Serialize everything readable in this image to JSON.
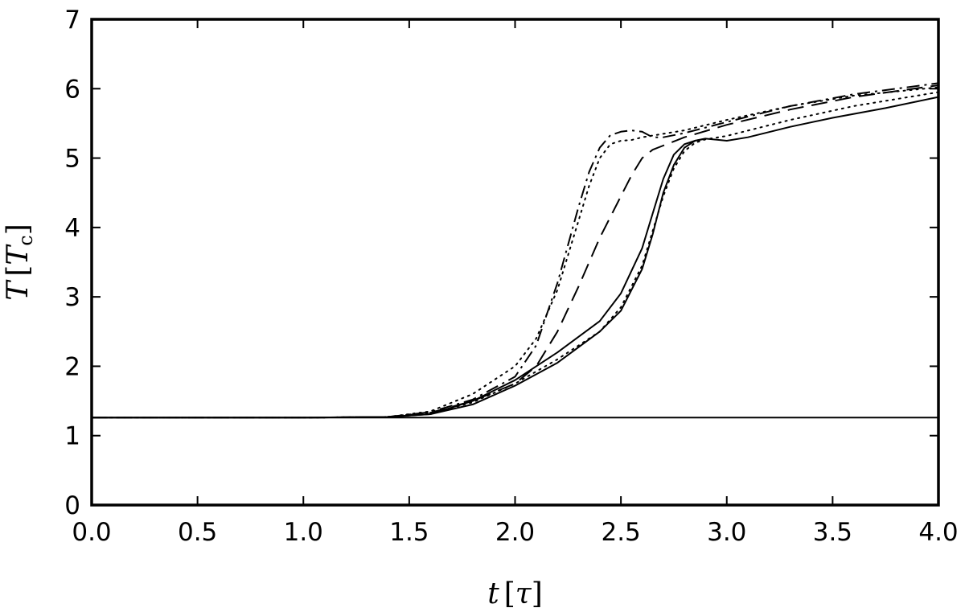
{
  "chart_data": {
    "type": "line",
    "title": "",
    "xlabel": "t [τ]",
    "ylabel": "T [T_c]",
    "xlim": [
      0.0,
      4.0
    ],
    "ylim": [
      0,
      7
    ],
    "x_ticks": [
      "0.0",
      "0.5",
      "1.0",
      "1.5",
      "2.0",
      "2.5",
      "3.0",
      "3.5",
      "4.0"
    ],
    "y_ticks": [
      "0",
      "1",
      "2",
      "3",
      "4",
      "5",
      "6",
      "7"
    ],
    "grid": false,
    "legend": "none",
    "series": [
      {
        "style": "solid",
        "points": [
          [
            0,
            1.26
          ],
          [
            4,
            1.26
          ]
        ]
      },
      {
        "style": "solid",
        "points": [
          [
            0,
            1.26
          ],
          [
            1.0,
            1.26
          ],
          [
            1.4,
            1.27
          ],
          [
            1.6,
            1.31
          ],
          [
            1.8,
            1.45
          ],
          [
            2.0,
            1.72
          ],
          [
            2.2,
            2.05
          ],
          [
            2.4,
            2.5
          ],
          [
            2.5,
            2.8
          ],
          [
            2.6,
            3.4
          ],
          [
            2.65,
            3.9
          ],
          [
            2.7,
            4.5
          ],
          [
            2.75,
            4.9
          ],
          [
            2.8,
            5.15
          ],
          [
            2.85,
            5.25
          ],
          [
            2.9,
            5.28
          ],
          [
            3.0,
            5.25
          ],
          [
            3.1,
            5.3
          ],
          [
            3.3,
            5.45
          ],
          [
            3.5,
            5.58
          ],
          [
            3.75,
            5.72
          ],
          [
            4.0,
            5.88
          ]
        ]
      },
      {
        "style": "solid",
        "points": [
          [
            0,
            1.26
          ],
          [
            1.0,
            1.26
          ],
          [
            1.4,
            1.27
          ],
          [
            1.6,
            1.31
          ],
          [
            1.8,
            1.5
          ],
          [
            2.0,
            1.8
          ],
          [
            2.2,
            2.2
          ],
          [
            2.4,
            2.65
          ],
          [
            2.5,
            3.05
          ],
          [
            2.6,
            3.7
          ],
          [
            2.65,
            4.2
          ],
          [
            2.7,
            4.7
          ],
          [
            2.75,
            5.05
          ],
          [
            2.8,
            5.2
          ],
          [
            2.85,
            5.25
          ],
          [
            2.9,
            5.28
          ]
        ]
      },
      {
        "style": "dotted",
        "points": [
          [
            0,
            1.26
          ],
          [
            1.0,
            1.26
          ],
          [
            1.4,
            1.27
          ],
          [
            1.6,
            1.32
          ],
          [
            1.8,
            1.48
          ],
          [
            2.0,
            1.75
          ],
          [
            2.2,
            2.1
          ],
          [
            2.4,
            2.5
          ],
          [
            2.5,
            2.85
          ],
          [
            2.6,
            3.45
          ],
          [
            2.7,
            4.45
          ],
          [
            2.75,
            4.85
          ],
          [
            2.8,
            5.1
          ],
          [
            2.85,
            5.22
          ],
          [
            2.9,
            5.27
          ],
          [
            3.0,
            5.32
          ],
          [
            3.3,
            5.55
          ],
          [
            3.6,
            5.75
          ],
          [
            4.0,
            5.95
          ]
        ]
      },
      {
        "style": "dotted",
        "points": [
          [
            0,
            1.26
          ],
          [
            1.0,
            1.26
          ],
          [
            1.4,
            1.27
          ],
          [
            1.6,
            1.35
          ],
          [
            1.8,
            1.6
          ],
          [
            2.0,
            2.0
          ],
          [
            2.1,
            2.4
          ],
          [
            2.2,
            3.1
          ],
          [
            2.3,
            4.1
          ],
          [
            2.35,
            4.6
          ],
          [
            2.4,
            5.0
          ],
          [
            2.45,
            5.2
          ],
          [
            2.5,
            5.25
          ],
          [
            2.55,
            5.26
          ],
          [
            2.6,
            5.3
          ],
          [
            2.8,
            5.4
          ],
          [
            3.0,
            5.55
          ],
          [
            3.3,
            5.75
          ],
          [
            3.6,
            5.9
          ],
          [
            4.0,
            6.02
          ]
        ]
      },
      {
        "style": "dashed",
        "points": [
          [
            0,
            1.26
          ],
          [
            1.0,
            1.26
          ],
          [
            1.4,
            1.27
          ],
          [
            1.6,
            1.33
          ],
          [
            1.8,
            1.5
          ],
          [
            2.0,
            1.75
          ],
          [
            2.1,
            2.0
          ],
          [
            2.2,
            2.5
          ],
          [
            2.3,
            3.15
          ],
          [
            2.4,
            3.85
          ],
          [
            2.5,
            4.45
          ],
          [
            2.55,
            4.75
          ],
          [
            2.6,
            5.0
          ],
          [
            2.65,
            5.12
          ],
          [
            2.7,
            5.18
          ],
          [
            2.8,
            5.3
          ],
          [
            3.0,
            5.48
          ],
          [
            3.3,
            5.7
          ],
          [
            3.6,
            5.88
          ],
          [
            4.0,
            6.05
          ]
        ]
      },
      {
        "style": "dashdot",
        "points": [
          [
            0,
            1.26
          ],
          [
            1.0,
            1.26
          ],
          [
            1.4,
            1.27
          ],
          [
            1.6,
            1.34
          ],
          [
            1.8,
            1.52
          ],
          [
            2.0,
            1.85
          ],
          [
            2.1,
            2.3
          ],
          [
            2.2,
            3.2
          ],
          [
            2.3,
            4.3
          ],
          [
            2.35,
            4.8
          ],
          [
            2.4,
            5.15
          ],
          [
            2.45,
            5.33
          ],
          [
            2.5,
            5.38
          ],
          [
            2.55,
            5.4
          ],
          [
            2.6,
            5.38
          ],
          [
            2.65,
            5.3
          ],
          [
            2.7,
            5.3
          ],
          [
            2.8,
            5.36
          ],
          [
            3.0,
            5.52
          ],
          [
            3.3,
            5.75
          ],
          [
            3.6,
            5.92
          ],
          [
            4.0,
            6.08
          ]
        ]
      }
    ]
  }
}
